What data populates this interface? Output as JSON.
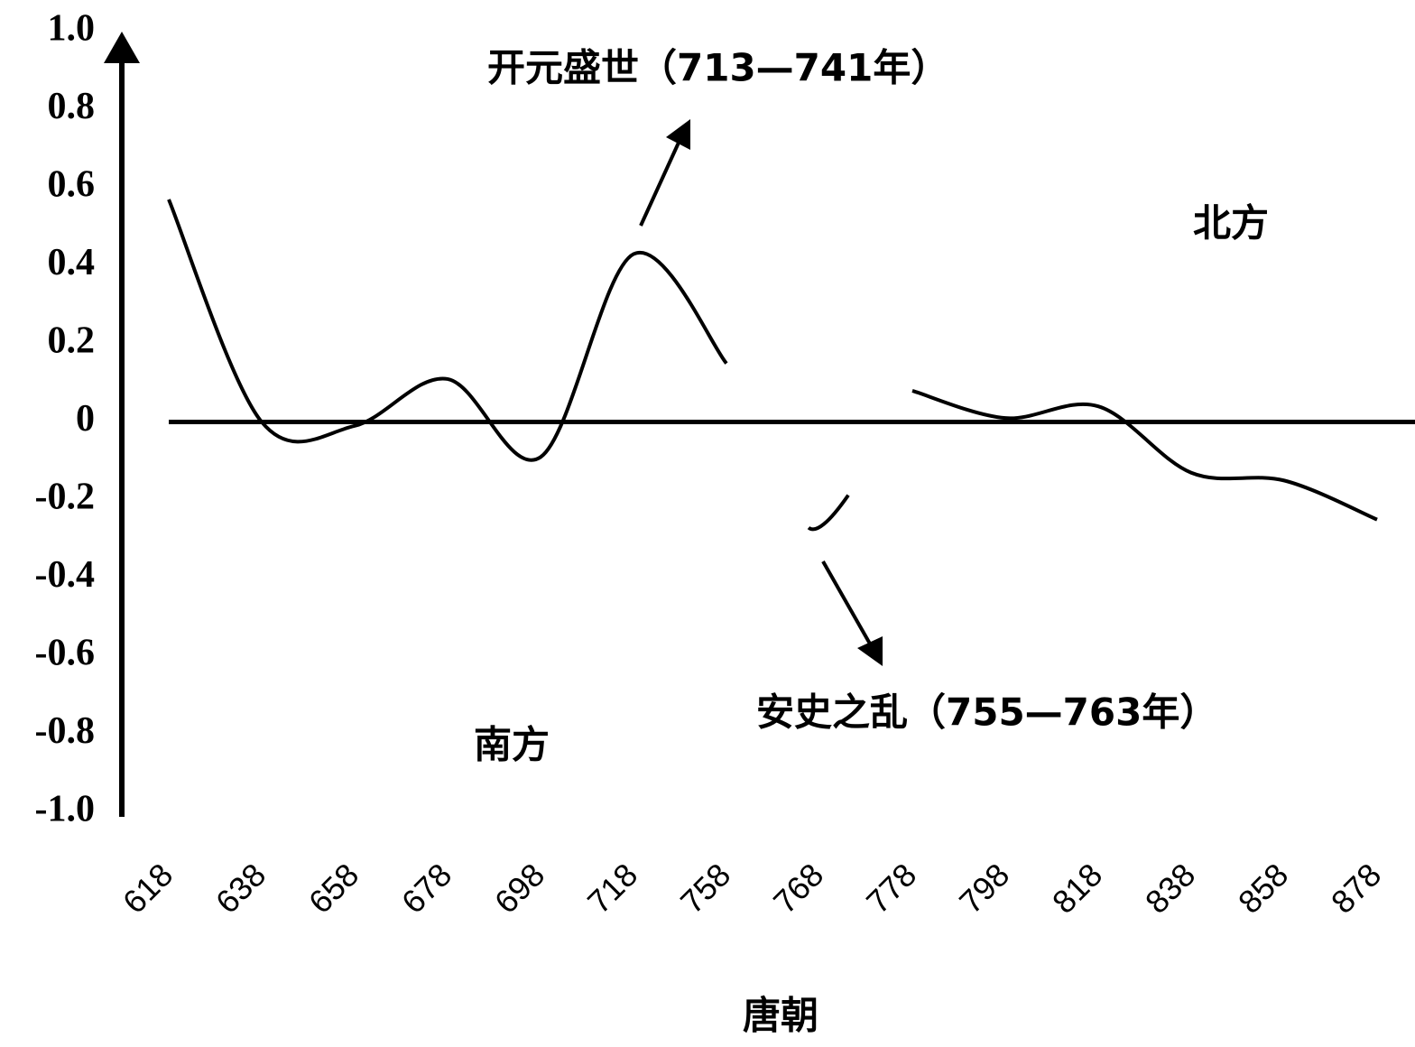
{
  "chart_data": {
    "type": "line",
    "x_label": "唐朝",
    "categories": [
      "618",
      "638",
      "658",
      "678",
      "698",
      "718",
      "758",
      "768",
      "778",
      "798",
      "818",
      "838",
      "858",
      "878"
    ],
    "series": [
      {
        "color": "#000000",
        "values": [
          0.57,
          0.0,
          -0.01,
          0.11,
          -0.09,
          0.43,
          0.15,
          -0.28,
          0.08,
          0.01,
          0.04,
          -0.13,
          -0.15,
          -0.25
        ]
      }
    ],
    "ylim": [
      -1,
      1
    ],
    "yticks": [
      {
        "value": 1,
        "label": "1.0"
      },
      0.8,
      0.6,
      0.4,
      0.2,
      0,
      -0.2,
      -0.4,
      -0.6,
      -0.8,
      {
        "value": -1,
        "label": "-1.0"
      }
    ],
    "annotations": [
      "开元盛世（713—741年）",
      "安史之乱（755—763年）",
      "北方",
      "南方"
    ]
  }
}
